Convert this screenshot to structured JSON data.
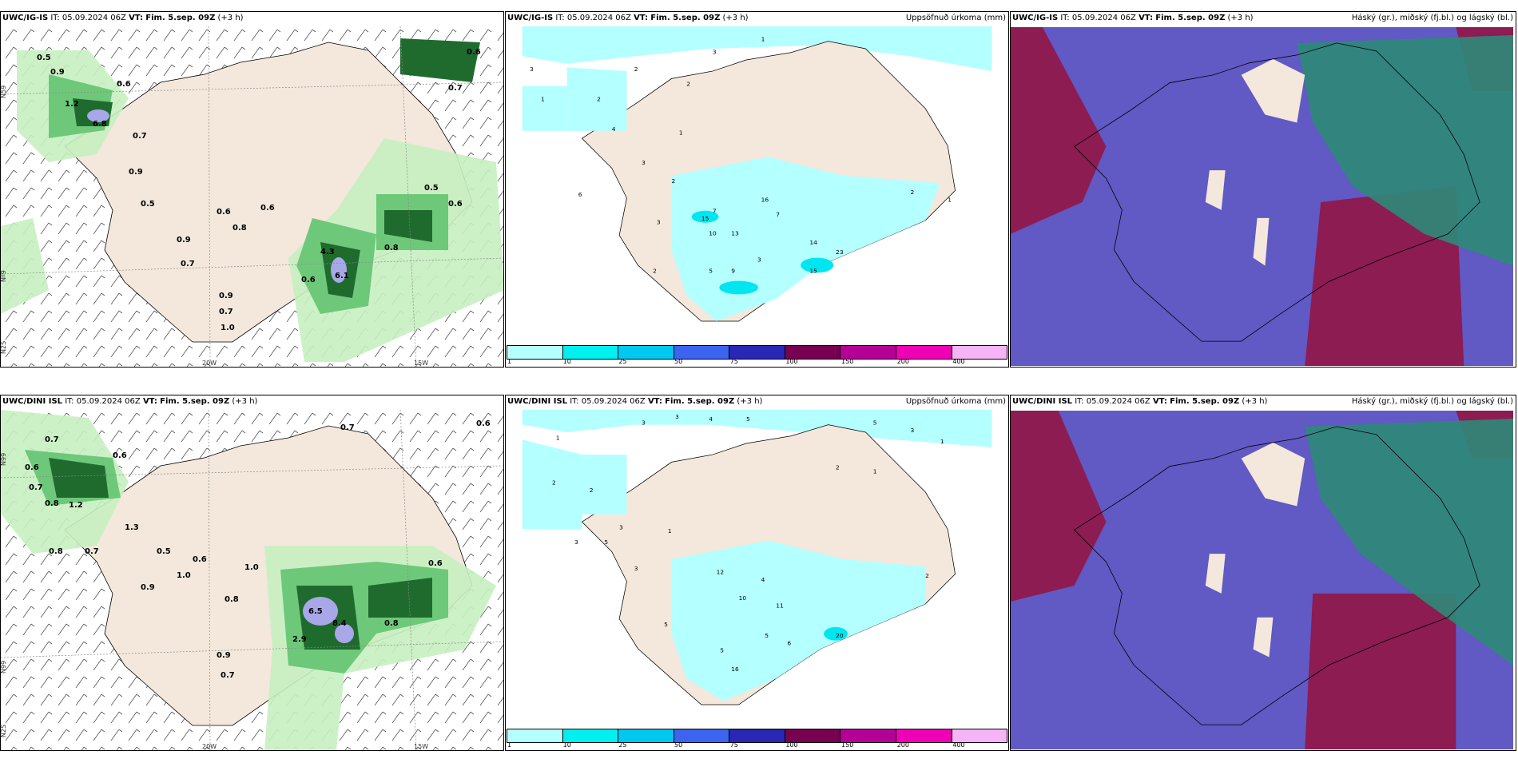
{
  "rows": [
    {
      "model": "UWC/IG-IS",
      "it_label": "IT:",
      "it_value": "05.09.2024 06Z",
      "vt_label": "VT:",
      "vt_value": "Fim. 5.sep. 09Z",
      "lead": "(+3 h)",
      "precip_labels": [
        "0.5",
        "0.9",
        "0.6",
        "1.2",
        "6.8",
        "0.9",
        "0.5",
        "0.7",
        "0.9",
        "0.6",
        "0.8",
        "0.7",
        "0.6",
        "4.3",
        "6.1",
        "0.6",
        "0.9",
        "0.7",
        "1.0",
        "0.8",
        "0.5",
        "0.6",
        "0.7",
        "0.6"
      ],
      "accum_labels": [
        "3",
        "1",
        "2",
        "2",
        "2",
        "1",
        "3",
        "4",
        "1",
        "3",
        "2",
        "6",
        "3",
        "2",
        "15",
        "16",
        "13",
        "7",
        "10",
        "7",
        "9",
        "5",
        "3",
        "15",
        "14",
        "23",
        "2",
        "1"
      ],
      "axis": [
        "N59",
        "Nº9",
        "N2S",
        "20W",
        "15W"
      ]
    },
    {
      "model": "UWC/DINI ISL",
      "it_label": "IT:",
      "it_value": "05.09.2024 06Z",
      "vt_label": "VT:",
      "vt_value": "Fim. 5.sep. 09Z",
      "lead": "(+3 h)",
      "precip_labels": [
        "0.7",
        "0.6",
        "0.7",
        "0.8",
        "1.2",
        "0.6",
        "1.3",
        "0.8",
        "0.7",
        "0.5",
        "1.0",
        "0.6",
        "0.9",
        "0.8",
        "6.5",
        "8.4",
        "2.9",
        "0.9",
        "0.7",
        "1.0",
        "0.8",
        "0.6",
        "0.7",
        "0.6"
      ],
      "accum_labels": [
        "3",
        "3",
        "4",
        "5",
        "1",
        "2",
        "2",
        "3",
        "3",
        "5",
        "1",
        "3",
        "12",
        "10",
        "11",
        "4",
        "5",
        "6",
        "5",
        "5",
        "16",
        "20",
        "2",
        "1",
        "5",
        "3",
        "2",
        "1"
      ],
      "axis": [
        "N99",
        "N99",
        "N2S",
        "20W",
        "15W"
      ]
    }
  ],
  "accum_title": "Uppsöfnuð úrkoma (mm)",
  "cloud_title": "Háský (gr.), miðský (fj.bl.) og lágský (bl.)",
  "colorbar": {
    "ticks": [
      "1",
      "10",
      "25",
      "50",
      "75",
      "100",
      "150",
      "200",
      "400"
    ],
    "colors": [
      "#b4ffff",
      "#00f0f0",
      "#00c8f0",
      "#3c64f0",
      "#2828b4",
      "#780050",
      "#b40096",
      "#f000b4",
      "#f5b4f5"
    ]
  },
  "colors": {
    "land": "#f3e8db",
    "precip_light": "#c6f0c0",
    "precip_mid": "#6ec87a",
    "precip_dark": "#1f6b2e",
    "precip_peak": "#a8a8e8",
    "accum_fill": "#b4ffff",
    "accum_peak": "#00e6f0",
    "cloud_high": "#6159c4",
    "cloud_mid": "#8c1c52",
    "cloud_low": "#2e8a78"
  }
}
